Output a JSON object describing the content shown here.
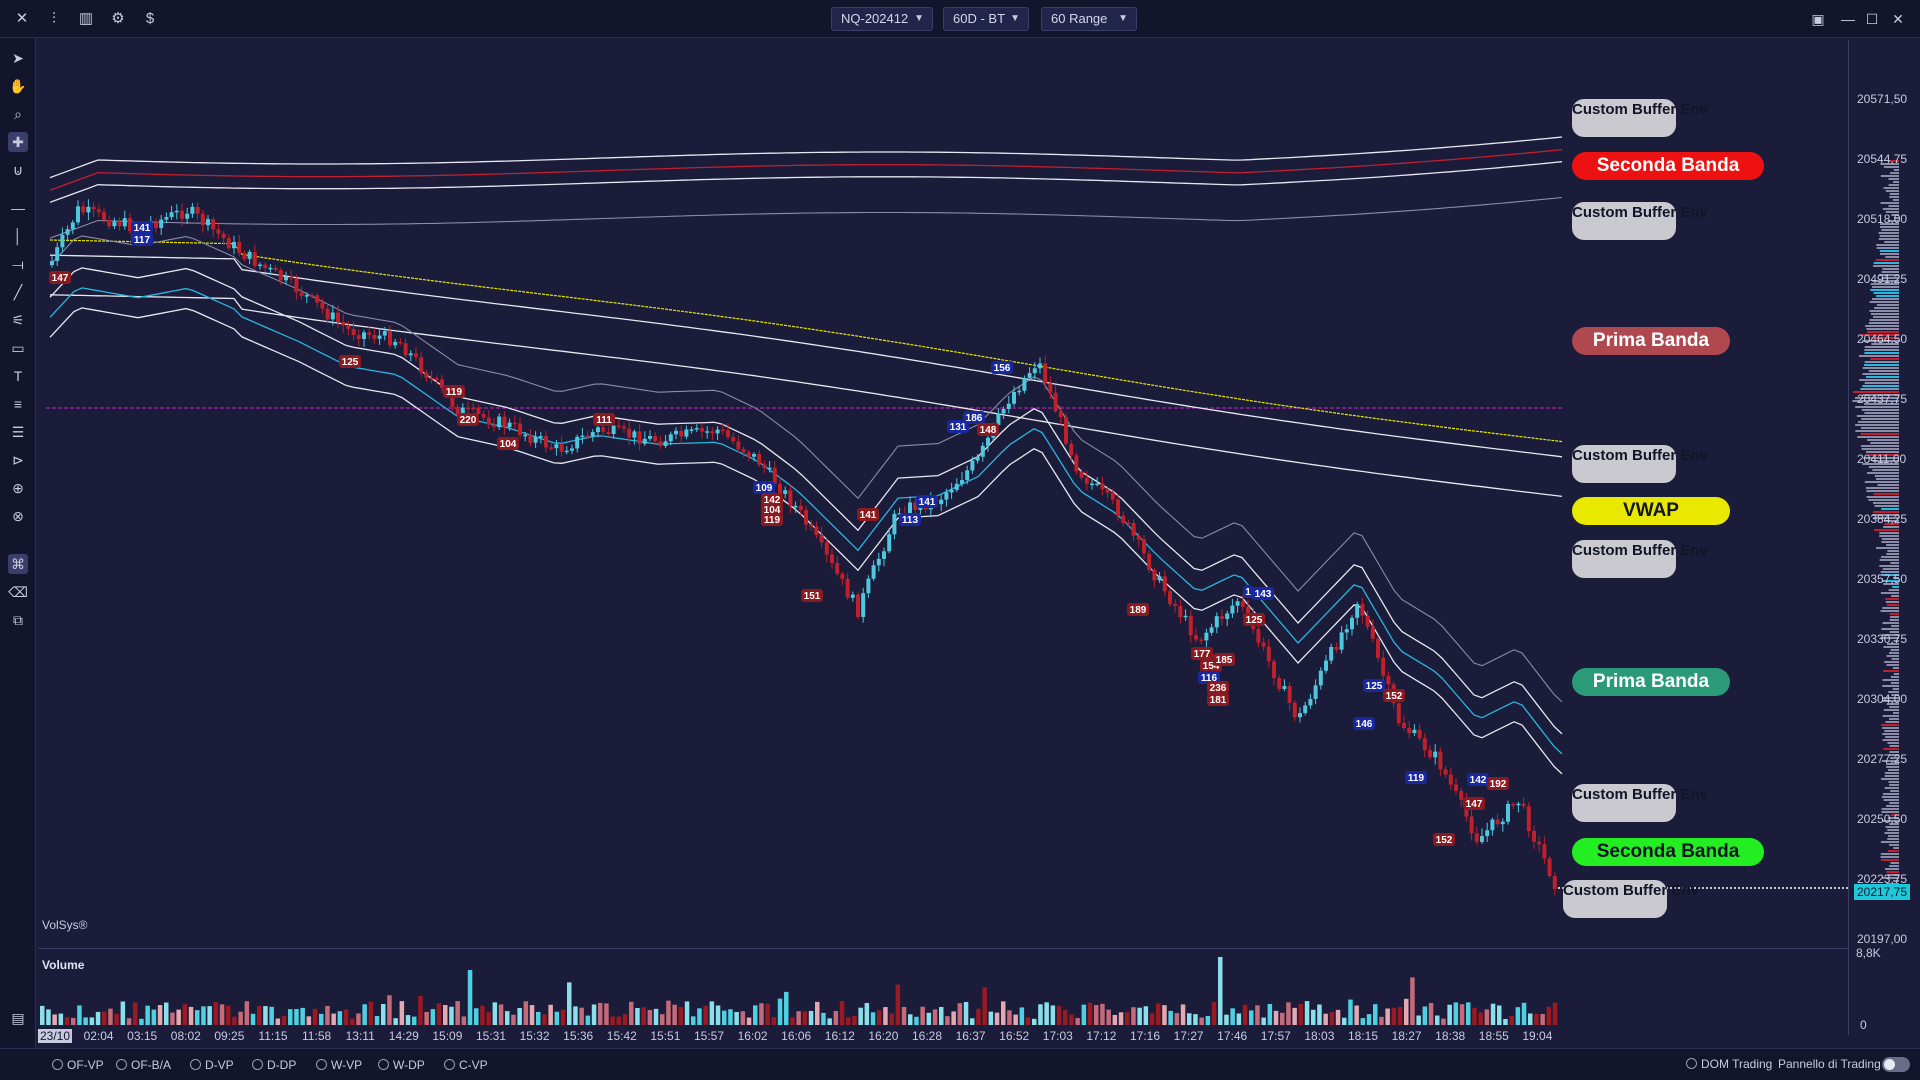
{
  "toolbar": {
    "symbol": "NQ-202412",
    "period": "60D - BT",
    "bar_type": "60 Range",
    "icons": [
      "close-icon",
      "bar-chart-icon",
      "column-chart-icon",
      "settings-icon",
      "dollar-icon"
    ]
  },
  "left_tools": [
    "cursor-icon",
    "hand-icon",
    "zoom-icon",
    "crosshair-icon",
    "magnet-icon",
    "horizontal-line-icon",
    "vertical-line-icon",
    "ray-icon",
    "trend-line-icon",
    "fibonacci-icon",
    "rectangle-icon",
    "text-icon",
    "list-icon",
    "menu-icon",
    "order-icon",
    "dollar-settings-icon",
    "price-settings-icon",
    "lock-icon",
    "eraser-icon",
    "layers-icon"
  ],
  "colors": {
    "background": "#1a1c3a",
    "up_candle": "#4fc8de",
    "down_candle": "#c0202a",
    "vwap": "#e8e800",
    "seconda_banda_top": "#ee1111",
    "seconda_banda_bottom": "#22ee22",
    "prima_banda_top": "#b04850",
    "prima_banda_bottom": "#2a9a78",
    "poc_line": "#d020d0"
  },
  "band_labels": {
    "custom": "Custom Buffer Env",
    "seconda_banda": "Seconda Banda",
    "prima_banda": "Prima Banda",
    "vwap": "VWAP"
  },
  "price_axis": {
    "ticks": [
      "20571,50",
      "20544,75",
      "20518,00",
      "20491,25",
      "20464,50",
      "20437,75",
      "20411,00",
      "20384,25",
      "20357,50",
      "20330,75",
      "20304,00",
      "20277,25",
      "20250,50",
      "20223,75",
      "20197,00"
    ],
    "last_price": "20217,75"
  },
  "volume": {
    "label": "Volume",
    "max_label": "8,8K",
    "zero_label": "0"
  },
  "brand": "VolSys®",
  "time_axis": [
    "23/10",
    "02:04",
    "03:15",
    "08:02",
    "09:25",
    "11:15",
    "11:58",
    "13:11",
    "14:29",
    "15:09",
    "15:31",
    "15:32",
    "15:36",
    "15:42",
    "15:51",
    "15:57",
    "16:02",
    "16:06",
    "16:12",
    "16:20",
    "16:28",
    "16:37",
    "16:52",
    "17:03",
    "17:12",
    "17:16",
    "17:27",
    "17:46",
    "17:57",
    "18:03",
    "18:15",
    "18:27",
    "18:38",
    "18:55",
    "19:04"
  ],
  "bar_labels": [
    "147",
    "141",
    "117",
    "125",
    "119",
    "220",
    "104",
    "111",
    "109",
    "142",
    "104",
    "119",
    "151",
    "141",
    "113",
    "141",
    "131",
    "186",
    "148",
    "156",
    "189",
    "177",
    "154",
    "185",
    "116",
    "236",
    "181",
    "1",
    "143",
    "125",
    "125",
    "152",
    "146",
    "119",
    "142",
    "192",
    "147",
    "152"
  ],
  "bottom_bar": {
    "indicators": [
      "OF-VP",
      "OF-B/A",
      "D-VP",
      "D-DP",
      "W-VP",
      "W-DP",
      "C-VP"
    ],
    "dom_trading": "DOM Trading",
    "trading_panel": "Pannello di Trading"
  }
}
